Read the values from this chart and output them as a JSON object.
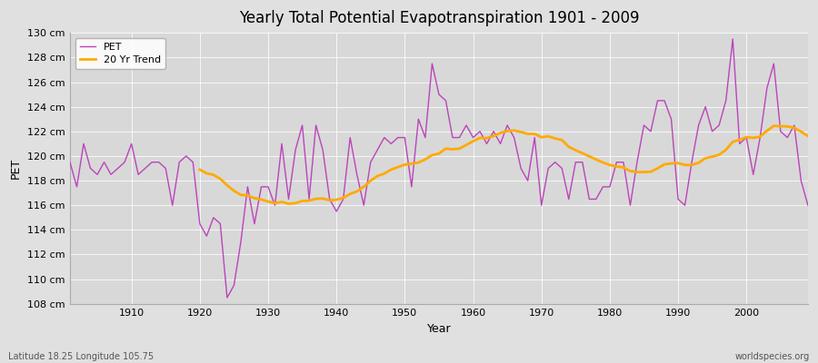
{
  "title": "Yearly Total Potential Evapotranspiration 1901 - 2009",
  "xlabel": "Year",
  "ylabel": "PET",
  "subtitle_lat_lon": "Latitude 18.25 Longitude 105.75",
  "watermark": "worldspecies.org",
  "pet_color": "#bb44bb",
  "trend_color": "#ffaa00",
  "background_color": "#e0e0e0",
  "plot_bg_color": "#d8d8d8",
  "ylim": [
    108,
    130
  ],
  "ytick_step": 2,
  "xlim": [
    1901,
    2009
  ],
  "xticks": [
    1910,
    1920,
    1930,
    1940,
    1950,
    1960,
    1970,
    1980,
    1990,
    2000
  ],
  "years": [
    1901,
    1902,
    1903,
    1904,
    1905,
    1906,
    1907,
    1908,
    1909,
    1910,
    1911,
    1912,
    1913,
    1914,
    1915,
    1916,
    1917,
    1918,
    1919,
    1920,
    1921,
    1922,
    1923,
    1924,
    1925,
    1926,
    1927,
    1928,
    1929,
    1930,
    1931,
    1932,
    1933,
    1934,
    1935,
    1936,
    1937,
    1938,
    1939,
    1940,
    1941,
    1942,
    1943,
    1944,
    1945,
    1946,
    1947,
    1948,
    1949,
    1950,
    1951,
    1952,
    1953,
    1954,
    1955,
    1956,
    1957,
    1958,
    1959,
    1960,
    1961,
    1962,
    1963,
    1964,
    1965,
    1966,
    1967,
    1968,
    1969,
    1970,
    1971,
    1972,
    1973,
    1974,
    1975,
    1976,
    1977,
    1978,
    1979,
    1980,
    1981,
    1982,
    1983,
    1984,
    1985,
    1986,
    1987,
    1988,
    1989,
    1990,
    1991,
    1992,
    1993,
    1994,
    1995,
    1996,
    1997,
    1998,
    1999,
    2000,
    2001,
    2002,
    2003,
    2004,
    2005,
    2006,
    2007,
    2008,
    2009
  ],
  "pet_values": [
    119.5,
    117.5,
    121.0,
    119.0,
    118.5,
    119.5,
    118.5,
    119.0,
    119.5,
    121.0,
    118.5,
    119.0,
    119.5,
    119.5,
    119.0,
    116.0,
    119.5,
    120.0,
    119.5,
    114.5,
    113.5,
    115.0,
    114.5,
    108.5,
    109.5,
    113.0,
    117.5,
    114.5,
    117.5,
    117.5,
    116.0,
    121.0,
    116.5,
    120.5,
    122.5,
    116.5,
    122.5,
    120.5,
    116.5,
    115.5,
    116.5,
    121.5,
    118.5,
    116.0,
    119.5,
    120.5,
    121.5,
    121.0,
    121.5,
    121.5,
    117.5,
    123.0,
    121.5,
    127.5,
    125.0,
    124.5,
    121.5,
    121.5,
    122.5,
    121.5,
    122.0,
    121.0,
    122.0,
    121.0,
    122.5,
    121.5,
    119.0,
    118.0,
    121.5,
    116.0,
    119.0,
    119.5,
    119.0,
    116.5,
    119.5,
    119.5,
    116.5,
    116.5,
    117.5,
    117.5,
    119.5,
    119.5,
    116.0,
    119.5,
    122.5,
    122.0,
    124.5,
    124.5,
    123.0,
    116.5,
    116.0,
    119.5,
    122.5,
    124.0,
    122.0,
    122.5,
    124.5,
    129.5,
    121.0,
    121.5,
    118.5,
    121.5,
    125.5,
    127.5,
    122.0,
    121.5,
    122.5,
    118.0,
    116.0
  ],
  "legend_pet_label": "PET",
  "legend_trend_label": "20 Yr Trend"
}
